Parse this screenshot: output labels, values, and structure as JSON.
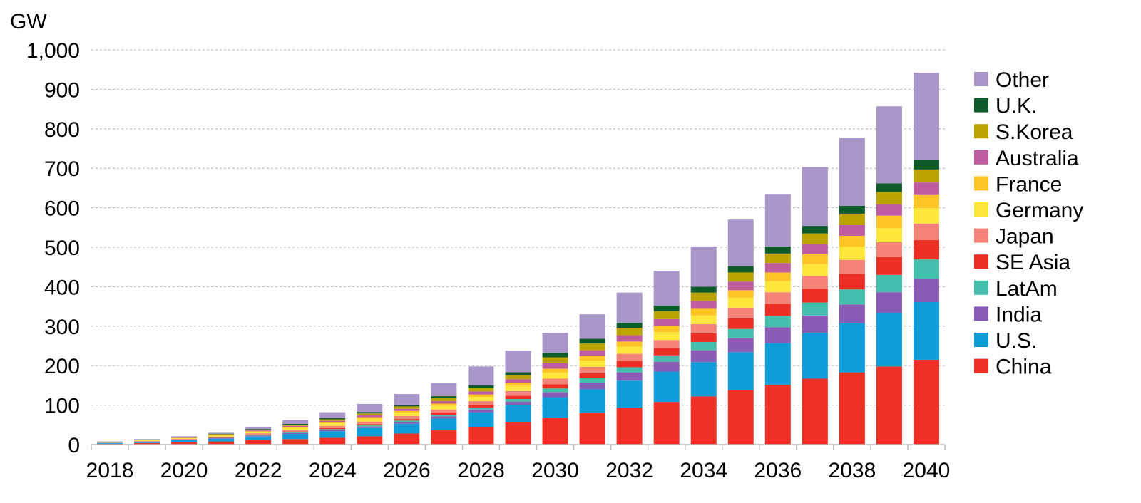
{
  "chart_data": {
    "type": "bar",
    "stacked": true,
    "ylabel": "GW",
    "ylim": [
      0,
      1000
    ],
    "yticks": [
      0,
      100,
      200,
      300,
      400,
      500,
      600,
      700,
      800,
      900,
      1000
    ],
    "ytick_labels": [
      "0",
      "100",
      "200",
      "300",
      "400",
      "500",
      "600",
      "700",
      "800",
      "900",
      "1,000"
    ],
    "grid": "horizontal dashed",
    "legend_placement": "right",
    "categories": [
      "2018",
      "2019",
      "2020",
      "2021",
      "2022",
      "2023",
      "2024",
      "2025",
      "2026",
      "2027",
      "2028",
      "2029",
      "2030",
      "2031",
      "2032",
      "2033",
      "2034",
      "2035",
      "2036",
      "2037",
      "2038",
      "2039",
      "2040"
    ],
    "xtick_labels": [
      "2018",
      "2020",
      "2022",
      "2024",
      "2026",
      "2028",
      "2030",
      "2032",
      "2034",
      "2036",
      "2038",
      "2040"
    ],
    "series": [
      {
        "name": "China",
        "color": "#EE3124",
        "values": [
          2,
          4,
          6,
          8,
          11,
          14,
          17,
          21,
          28,
          36,
          45,
          56,
          68,
          80,
          94,
          108,
          122,
          138,
          152,
          167,
          183,
          198,
          215
        ]
      },
      {
        "name": "U.S.",
        "color": "#0E9DD9",
        "values": [
          2,
          3,
          5,
          7,
          10,
          13,
          17,
          21,
          25,
          30,
          37,
          44,
          52,
          60,
          68,
          77,
          87,
          96,
          105,
          115,
          124,
          135,
          146
        ]
      },
      {
        "name": "India",
        "color": "#8A5BB5",
        "values": [
          0.3,
          0.5,
          0.8,
          1.2,
          1.8,
          2.5,
          3,
          3.8,
          4.5,
          5.5,
          7,
          9,
          13,
          17,
          21,
          25,
          30,
          35,
          40,
          45,
          48,
          53,
          59
        ]
      },
      {
        "name": "LatAm",
        "color": "#45BFAB",
        "values": [
          0.2,
          0.4,
          0.5,
          0.8,
          1.2,
          1.7,
          2.2,
          2.8,
          3.3,
          4,
          5,
          6.5,
          9,
          11,
          13,
          16,
          21,
          24,
          29,
          33,
          38,
          44,
          49
        ]
      },
      {
        "name": "SE Asia",
        "color": "#EC2F24",
        "values": [
          0.3,
          0.5,
          0.7,
          1,
          1.5,
          2,
          2.7,
          3.3,
          4,
          5,
          6,
          8,
          11,
          13,
          16,
          19,
          22,
          27,
          31,
          35,
          40,
          45,
          49
        ]
      },
      {
        "name": "Japan",
        "color": "#F4837A",
        "values": [
          0.5,
          1,
          1.5,
          2.2,
          3.2,
          4.3,
          5.5,
          6.5,
          7.5,
          8.5,
          10,
          12,
          14,
          16,
          18,
          20,
          23,
          27,
          29,
          32,
          35,
          38,
          42
        ]
      },
      {
        "name": "Germany",
        "color": "#FFE63A",
        "values": [
          0.8,
          1.3,
          1.8,
          2.6,
          3.6,
          5,
          6.3,
          7.5,
          8.7,
          9.8,
          11,
          13,
          15,
          16,
          18,
          20,
          22,
          25,
          28,
          30,
          33,
          35,
          39
        ]
      },
      {
        "name": "France",
        "color": "#FFC425",
        "values": [
          0.3,
          0.5,
          0.7,
          1,
          1.5,
          2,
          2.8,
          3.5,
          4.2,
          5,
          6,
          7,
          10,
          11,
          13,
          15,
          17,
          19,
          22,
          25,
          28,
          32,
          35
        ]
      },
      {
        "name": "Australia",
        "color": "#BF5CA0",
        "values": [
          0.4,
          0.7,
          1,
          1.4,
          2,
          2.8,
          3.6,
          4.5,
          5.5,
          6.5,
          8,
          10,
          14,
          15,
          16,
          18,
          20,
          22,
          24,
          26,
          27,
          29,
          30
        ]
      },
      {
        "name": "S.Korea",
        "color": "#BBA300",
        "values": [
          0.3,
          0.6,
          0.9,
          1.3,
          2,
          3,
          4,
          5,
          6,
          7,
          8.5,
          10,
          15,
          17,
          19,
          20,
          21,
          23,
          24,
          27,
          29,
          31,
          33
        ]
      },
      {
        "name": "U.K.",
        "color": "#0F5A2B",
        "values": [
          0.4,
          0.6,
          0.8,
          1.1,
          1.6,
          2.3,
          3,
          3.8,
          4.5,
          5.3,
          6.5,
          8,
          11,
          12,
          13,
          14,
          15,
          16,
          18,
          19,
          20,
          22,
          25
        ]
      },
      {
        "name": "Other",
        "color": "#A996C8",
        "values": [
          0.5,
          0.9,
          1.3,
          2.4,
          4.6,
          9.4,
          14.9,
          20.3,
          26.8,
          33.4,
          48,
          54.5,
          51,
          62,
          76,
          88,
          102,
          118,
          133,
          149,
          172,
          195,
          220
        ]
      }
    ]
  }
}
